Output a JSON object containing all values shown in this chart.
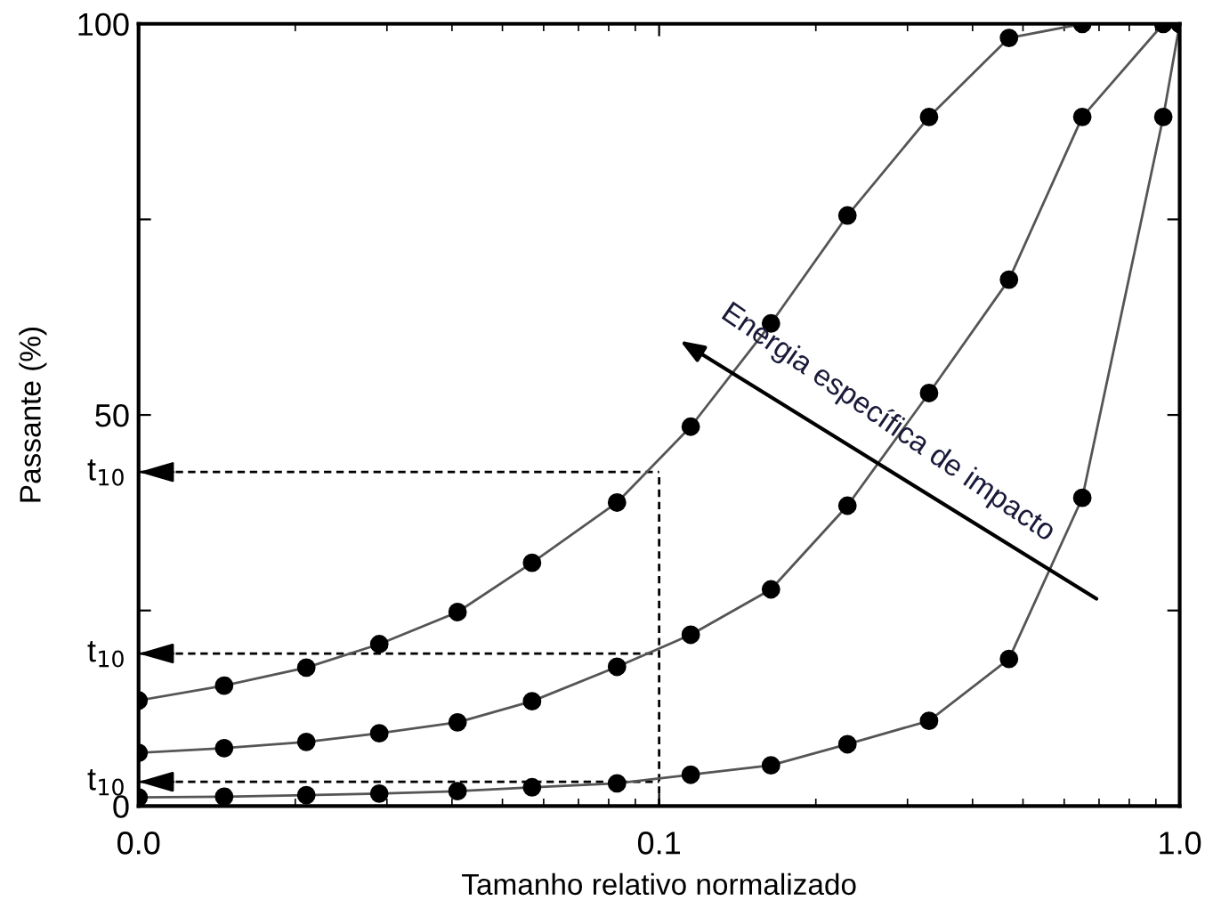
{
  "chart_data": {
    "type": "line",
    "xlabel": "Tamanho relativo normalizado",
    "ylabel": "Passante (%)",
    "log": "x",
    "xlim": [
      0.01,
      1.0
    ],
    "xticks": [
      {
        "value": 0.01,
        "label": "0.0"
      },
      0.1,
      {
        "value": 1.0,
        "label": "1.0"
      }
    ],
    "ylim": [
      0,
      100
    ],
    "yticks": [
      0,
      {
        "value": 25,
        "label": null
      },
      50,
      {
        "value": 75,
        "label": null
      },
      100
    ],
    "ref_lines": [
      {
        "axis": "x",
        "value": 0.1,
        "line_style": "dashed"
      },
      {
        "axis": "y",
        "value": 42.7,
        "label": "t$_{10}$",
        "line_style": "dashed"
      },
      {
        "axis": "y",
        "value": 19.5,
        "label": "t$_{10}$",
        "line_style": "dashed"
      },
      {
        "axis": "y",
        "value": 3.1,
        "label": "t$_{10}$",
        "line_style": "dashed"
      }
    ],
    "grid": false,
    "marker": "circle",
    "line_style": "solid",
    "series": [
      {
        "color": "#000000",
        "x": [
          0.01,
          0.0146,
          0.021,
          0.029,
          0.041,
          0.057,
          0.083,
          0.115,
          0.164,
          0.23,
          0.33,
          0.47,
          0.65
        ],
        "values": [
          13.5,
          15.4,
          17.7,
          20.7,
          24.8,
          31.1,
          38.8,
          48.5,
          61.7,
          75.5,
          88.1,
          98.2,
          100
        ]
      },
      {
        "color": "#000000",
        "x": [
          0.01,
          0.0146,
          0.021,
          0.029,
          0.041,
          0.057,
          0.083,
          0.115,
          0.164,
          0.23,
          0.33,
          0.47,
          0.65,
          0.93
        ],
        "values": [
          6.8,
          7.4,
          8.2,
          9.3,
          10.7,
          13.4,
          17.8,
          21.9,
          27.7,
          38.4,
          52.8,
          67.3,
          88.1,
          100
        ]
      },
      {
        "color": "#000000",
        "x": [
          0.01,
          0.0146,
          0.021,
          0.029,
          0.041,
          0.057,
          0.083,
          0.115,
          0.164,
          0.23,
          0.33,
          0.47,
          0.65,
          0.93,
          1.0
        ],
        "values": [
          1.1,
          1.2,
          1.4,
          1.6,
          1.9,
          2.4,
          2.9,
          4.0,
          5.2,
          7.9,
          10.9,
          18.8,
          39.4,
          88.1,
          100
        ]
      }
    ],
    "annotations": [
      "Energia específica de impacto"
    ]
  }
}
